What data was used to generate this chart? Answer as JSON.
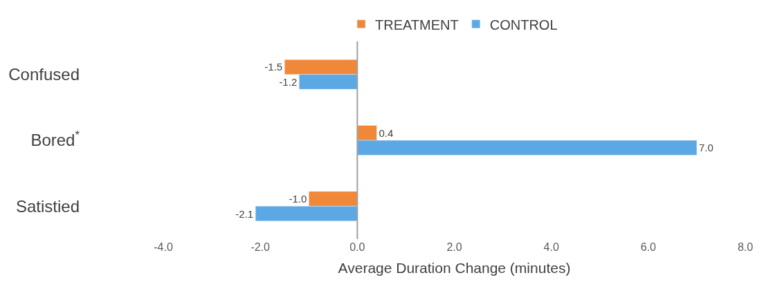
{
  "chart_data": {
    "type": "bar",
    "orientation": "horizontal",
    "xlabel": "Average Duration Change (minutes)",
    "categories": [
      "Confused",
      "Bored$^{*}$",
      "Satistied"
    ],
    "series": [
      {
        "name": "TREATMENT",
        "color": "#f0883a",
        "values": [
          -1.5,
          0.4,
          -1.0
        ],
        "value_labels": [
          "-1.5",
          "0.4",
          "-1.0"
        ]
      },
      {
        "name": "CONTROL",
        "color": "#5ba8e4",
        "values": [
          -1.2,
          7.0,
          -2.1
        ],
        "value_labels": [
          "-1.2",
          "7.0",
          "-2.1"
        ]
      }
    ],
    "xlim": [
      -4,
      8
    ],
    "xticks": [
      {
        "value": -4,
        "label": "-4.0"
      },
      {
        "value": -2,
        "label": "-2.0"
      },
      {
        "value": 0,
        "label": "0.0"
      },
      {
        "value": 2,
        "label": "2.0"
      },
      {
        "value": 4,
        "label": "4.0"
      },
      {
        "value": 6,
        "label": "6.0"
      },
      {
        "value": 8,
        "label": "8.0"
      }
    ],
    "ref_lines": [
      {
        "axis": "x",
        "value": 0,
        "color": "#a0a0a0"
      }
    ],
    "legend": "top"
  }
}
